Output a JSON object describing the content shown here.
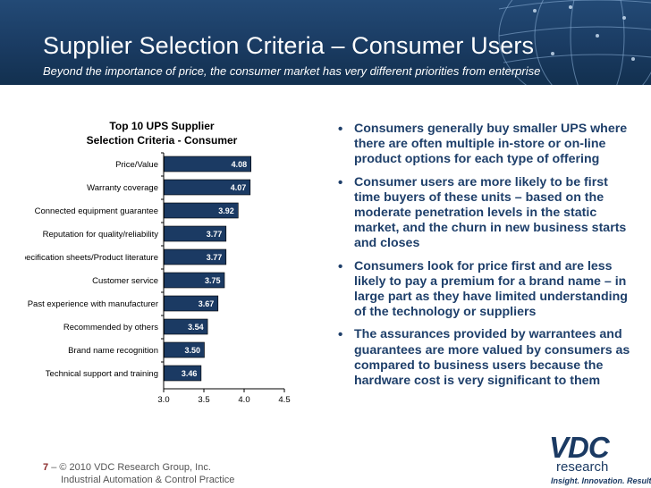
{
  "header": {
    "title": "Supplier Selection Criteria – Consumer Users",
    "subtitle": "Beyond the importance of price, the consumer market has very different priorities from enterprise"
  },
  "chart_data": {
    "type": "bar",
    "orientation": "horizontal",
    "title": "Top 10 UPS Supplier",
    "subtitle": "Selection Criteria - Consumer",
    "categories": [
      "Price/Value",
      "Warranty coverage",
      "Connected equipment guarantee",
      "Reputation for quality/reliability",
      "Specification sheets/Product literature",
      "Customer service",
      "Past experience with manufacturer",
      "Recommended by others",
      "Brand name recognition",
      "Technical support and training"
    ],
    "values": [
      4.08,
      4.07,
      3.92,
      3.77,
      3.77,
      3.75,
      3.67,
      3.54,
      3.5,
      3.46
    ],
    "data_labels": [
      "4.08",
      "4.07",
      "3.92",
      "3.77",
      "3.77",
      "3.75",
      "3.67",
      "3.54",
      "3.50",
      "3.46"
    ],
    "xlim": [
      3.0,
      4.5
    ],
    "ticks": [
      "3.0",
      "3.5",
      "4.0",
      "4.5"
    ],
    "tick_values": [
      3.0,
      3.5,
      4.0,
      4.5
    ],
    "xlabel": "",
    "ylabel": "",
    "grid": false,
    "legend": "none",
    "bar_color": "#1b3a63"
  },
  "bullets": [
    "Consumers generally buy smaller UPS where there are often multiple in-store or on-line product options for each type of offering",
    "Consumer users are more likely to be first time buyers of these units – based on the moderate penetration levels in the static market, and the churn in new business starts and closes",
    "Consumers look for price first and are less likely to pay a premium for a brand name – in large part as they have limited understanding of the technology or suppliers",
    "The assurances provided by warrantees and guarantees are more valued by consumers as compared to business users because the hardware cost is very significant to them"
  ],
  "footer": {
    "page_number": "7",
    "separator": "–",
    "copyright": "© 2010 VDC Research Group, Inc.",
    "practice": "Industrial Automation & Control Practice"
  },
  "logo": {
    "name": "VDC",
    "sub": "research",
    "tagline": "Insight. Innovation. Results."
  },
  "colors": {
    "header_bg": "#1a3b62",
    "accent": "#1b3a63",
    "bullet_text": "#1e3f6a"
  }
}
